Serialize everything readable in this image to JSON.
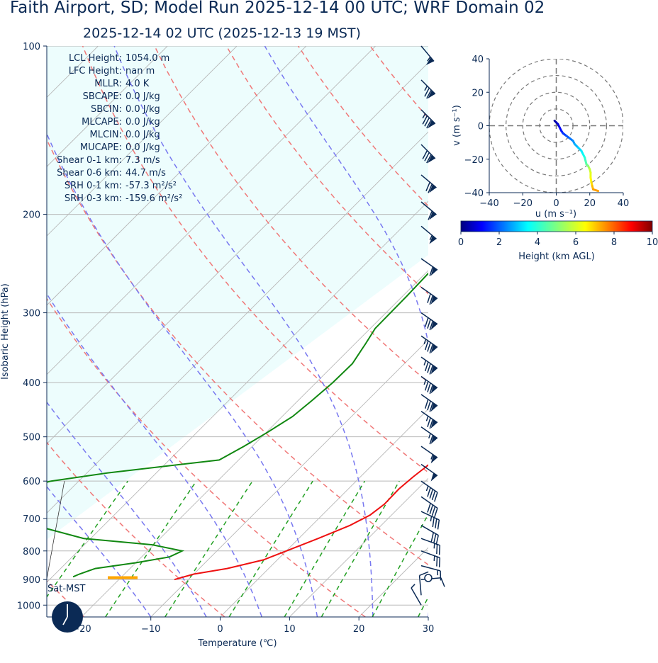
{
  "title": "Faith Airport, SD; Model Run 2025-12-14 00 UTC; WRF Domain 02",
  "subtitle": "2025-12-14 02 UTC  (2025-12-13 19 MST)",
  "colors": {
    "text": "#0b2a55",
    "temperature": "#ee1111",
    "dewpoint": "#118811",
    "dry_adiabat": "#f07878",
    "moist_adiabat": "#7878f0",
    "mixing_ratio": "#22a022",
    "cape_fill": "#edfdfd",
    "isotherm": "#b8b8b8",
    "lcl_marker": "#ffa500"
  },
  "stats": [
    {
      "label": "LCL Height:",
      "value": "1054.0 m"
    },
    {
      "label": "LFC Height:",
      "value": "nan m"
    },
    {
      "label": "MLLR:",
      "value": "4.0 K"
    },
    {
      "label": "SBCAPE:",
      "value": "0.0 J/kg"
    },
    {
      "label": "SBCIN:",
      "value": "0.0 J/kg"
    },
    {
      "label": "MLCAPE:",
      "value": "0.0 J/kg"
    },
    {
      "label": "MLCIN:",
      "value": "0.0 J/kg"
    },
    {
      "label": "MUCAPE:",
      "value": "0.0 J/kg"
    },
    {
      "label": "Shear 0-1 km:",
      "value": "7.3 m/s"
    },
    {
      "label": "Shear 0-6 km:",
      "value": "44.7 m/s"
    },
    {
      "label": "SRH 0-1 km:",
      "value": "-57.3 m²/s²"
    },
    {
      "label": "SRH 0-3 km:",
      "value": "-159.6 m²/s²"
    }
  ],
  "timezone_label": "Sat-MST",
  "chart_data": [
    {
      "type": "line",
      "chart": "skew-t",
      "xlabel": "Temperature (℃)",
      "ylabel": "Isobaric Height (hPa)",
      "xlim": [
        -25,
        30
      ],
      "ylim": [
        1050,
        100
      ],
      "y_scale": "log",
      "x_ticks": [
        "−20",
        "−10",
        "0",
        "10",
        "20",
        "30"
      ],
      "y_ticks": [
        "100",
        "200",
        "300",
        "400",
        "500",
        "600",
        "700",
        "800",
        "900",
        "1000"
      ],
      "series": [
        {
          "name": "Temperature",
          "pressure": [
            900,
            880,
            860,
            830,
            800,
            760,
            720,
            690,
            660,
            620,
            590,
            560,
            530,
            500,
            470,
            440,
            410,
            380,
            350,
            320,
            290,
            260,
            240,
            220,
            200,
            180,
            160,
            140,
            120,
            100
          ],
          "values": [
            -12,
            -10,
            -6,
            -2,
            0,
            2.8,
            5.5,
            6.9,
            7.4,
            7.3,
            7.6,
            8.1,
            8.3,
            7.8,
            6.7,
            5.5,
            3.7,
            1.6,
            -0.2,
            -1.7,
            -3.2,
            -4.6,
            -6,
            -7.5,
            -6.5,
            -5.3,
            -3.8,
            -1.4,
            2.7,
            7.8
          ]
        },
        {
          "name": "Dewpoint",
          "pressure": [
            890,
            880,
            860,
            840,
            820,
            800,
            780,
            760,
            720,
            690,
            660,
            630,
            600,
            580,
            550,
            520,
            490,
            460,
            430,
            400,
            370,
            340,
            320,
            280,
            240,
            200,
            180,
            160,
            150,
            140,
            120,
            100
          ],
          "values": [
            -27,
            -26.5,
            -25,
            -20,
            -16,
            -15,
            -20.2,
            -31,
            -40,
            -46,
            -48,
            -49.3,
            -44,
            -37,
            -22.8,
            -21.2,
            -19.8,
            -18.5,
            -18,
            -17.6,
            -17.5,
            -18.5,
            -19.3,
            -19.4,
            -19.7,
            -19.8,
            -19.2,
            -18,
            -18,
            -17.6,
            -12,
            -4
          ]
        }
      ],
      "lcl_pressure": 893,
      "wind_barbs": [
        {
          "p": 1000,
          "speed_kt": 5,
          "dir": 150
        },
        {
          "p": 960,
          "speed_kt": 10,
          "dir": 175
        },
        {
          "p": 900,
          "speed_kt": 10,
          "dir": 265
        },
        {
          "p": 850,
          "speed_kt": 15,
          "dir": 285
        },
        {
          "p": 800,
          "speed_kt": 25,
          "dir": 290
        },
        {
          "p": 760,
          "speed_kt": 25,
          "dir": 290
        },
        {
          "p": 720,
          "speed_kt": 30,
          "dir": 300
        },
        {
          "p": 680,
          "speed_kt": 35,
          "dir": 295
        },
        {
          "p": 640,
          "speed_kt": 40,
          "dir": 305
        },
        {
          "p": 600,
          "speed_kt": 45,
          "dir": 305
        },
        {
          "p": 560,
          "speed_kt": 50,
          "dir": 305
        },
        {
          "p": 520,
          "speed_kt": 55,
          "dir": 305
        },
        {
          "p": 480,
          "speed_kt": 65,
          "dir": 305
        },
        {
          "p": 450,
          "speed_kt": 75,
          "dir": 305
        },
        {
          "p": 420,
          "speed_kt": 80,
          "dir": 305
        },
        {
          "p": 390,
          "speed_kt": 85,
          "dir": 305
        },
        {
          "p": 360,
          "speed_kt": 85,
          "dir": 305
        },
        {
          "p": 330,
          "speed_kt": 85,
          "dir": 305
        },
        {
          "p": 300,
          "speed_kt": 80,
          "dir": 305
        },
        {
          "p": 270,
          "speed_kt": 70,
          "dir": 305
        },
        {
          "p": 240,
          "speed_kt": 60,
          "dir": 305
        },
        {
          "p": 210,
          "speed_kt": 55,
          "dir": 310
        },
        {
          "p": 190,
          "speed_kt": 60,
          "dir": 310
        },
        {
          "p": 170,
          "speed_kt": 70,
          "dir": 310
        },
        {
          "p": 150,
          "speed_kt": 80,
          "dir": 315
        },
        {
          "p": 130,
          "speed_kt": 85,
          "dir": 315
        },
        {
          "p": 115,
          "speed_kt": 75,
          "dir": 315
        },
        {
          "p": 100,
          "speed_kt": 55,
          "dir": 320
        }
      ]
    },
    {
      "type": "line",
      "chart": "hodograph",
      "xlabel": "u (m s⁻¹)",
      "ylabel": "v (m s⁻¹)",
      "xlim": [
        -40,
        40
      ],
      "ylim": [
        -40,
        40
      ],
      "x_ticks": [
        "−40",
        "−20",
        "0",
        "20",
        "40"
      ],
      "y_ticks": [
        "40",
        "20",
        "0",
        "−20",
        "−40"
      ],
      "u": [
        -1,
        0,
        1,
        2,
        3,
        4,
        6,
        8,
        10,
        11,
        13,
        15,
        16,
        17,
        17.5,
        18,
        19,
        19.5,
        20,
        20.5,
        20.5,
        21,
        21.5,
        22,
        25
      ],
      "v": [
        3,
        2,
        1,
        -1,
        -3,
        -4.5,
        -6,
        -7.5,
        -9,
        -11,
        -13,
        -15,
        -17,
        -19,
        -21,
        -23,
        -24,
        -25,
        -26,
        -28,
        -31,
        -34,
        -36,
        -38,
        -39
      ],
      "height_km": [
        0,
        0.3,
        0.6,
        0.9,
        1.2,
        1.5,
        1.8,
        2.1,
        2.4,
        2.7,
        3.0,
        3.3,
        3.6,
        3.9,
        4.2,
        4.5,
        4.8,
        5.1,
        5.4,
        5.7,
        6.0,
        6.3,
        6.6,
        6.9,
        7.2
      ]
    },
    {
      "type": "heatmap",
      "chart": "colorbar",
      "label": "Height (km AGL)",
      "range": [
        0,
        10
      ],
      "ticks": [
        "0",
        "2",
        "4",
        "6",
        "8",
        "10"
      ],
      "colormap": "jet"
    }
  ]
}
